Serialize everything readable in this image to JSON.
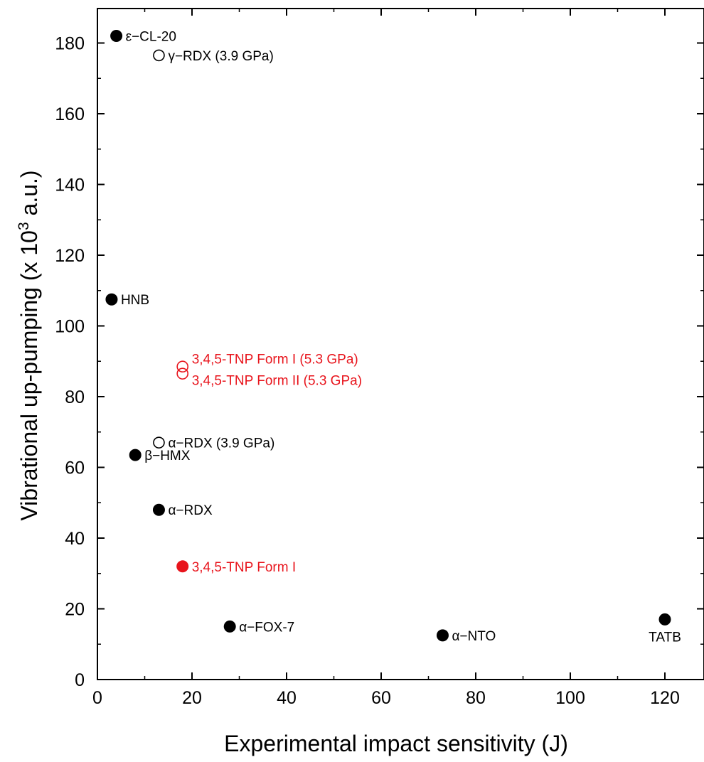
{
  "chart_data": {
    "type": "scatter",
    "xlabel": "Experimental impact sensitivity (J)",
    "ylabel_main": "Vibrational up-pumping (x 10",
    "ylabel_sup": "3",
    "ylabel_tail": " a.u.)",
    "xlim": [
      0,
      128
    ],
    "ylim": [
      0,
      188
    ],
    "x_ticks": [
      0,
      20,
      40,
      60,
      80,
      100,
      120
    ],
    "y_ticks": [
      0,
      20,
      40,
      60,
      80,
      100,
      120,
      140,
      160,
      180
    ],
    "grid": false,
    "colors": {
      "black": "#000000",
      "red": "#e8141c"
    },
    "points": [
      {
        "label": "ε−CL-20",
        "x": 4,
        "y": 182,
        "filled": true,
        "color": "black",
        "label_pos": "right"
      },
      {
        "label": "γ−RDX (3.9 GPa)",
        "x": 13,
        "y": 176.5,
        "filled": false,
        "color": "black",
        "label_pos": "right"
      },
      {
        "label": "HNB",
        "x": 3,
        "y": 107.5,
        "filled": true,
        "color": "black",
        "label_pos": "right"
      },
      {
        "label": "3,4,5-TNP Form I (5.3 GPa)",
        "x": 18,
        "y": 88.5,
        "filled": false,
        "color": "red",
        "label_pos": "right-up"
      },
      {
        "label": "3,4,5-TNP Form II (5.3 GPa)",
        "x": 18,
        "y": 86.5,
        "filled": false,
        "color": "red",
        "label_pos": "right-down"
      },
      {
        "label": "α−RDX (3.9 GPa)",
        "x": 13,
        "y": 67,
        "filled": false,
        "color": "black",
        "label_pos": "right"
      },
      {
        "label": "β−HMX",
        "x": 8,
        "y": 63.5,
        "filled": true,
        "color": "black",
        "label_pos": "right"
      },
      {
        "label": "α−RDX",
        "x": 13,
        "y": 48,
        "filled": true,
        "color": "black",
        "label_pos": "right"
      },
      {
        "label": "3,4,5-TNP Form I",
        "x": 18,
        "y": 32,
        "filled": true,
        "color": "red",
        "label_pos": "right"
      },
      {
        "label": "α−FOX-7",
        "x": 28,
        "y": 15,
        "filled": true,
        "color": "black",
        "label_pos": "right"
      },
      {
        "label": "α−NTO",
        "x": 73,
        "y": 12.5,
        "filled": true,
        "color": "black",
        "label_pos": "right"
      },
      {
        "label": "TATB",
        "x": 120,
        "y": 17,
        "filled": true,
        "color": "black",
        "label_pos": "below"
      }
    ]
  }
}
